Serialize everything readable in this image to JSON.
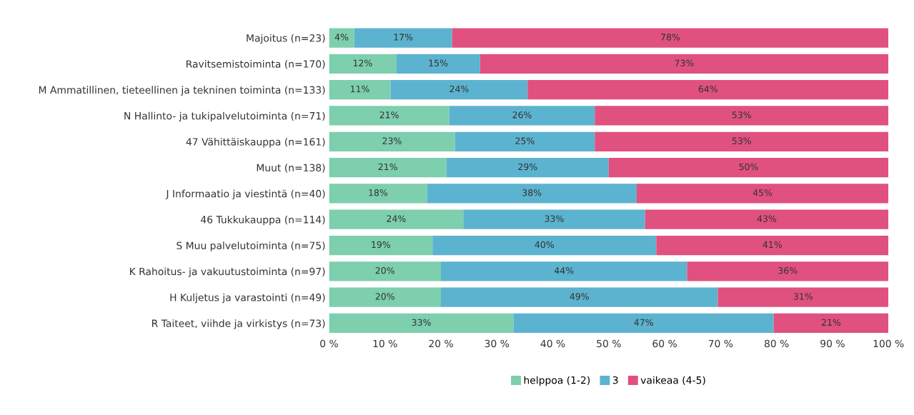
{
  "chart_data": {
    "type": "bar",
    "orientation": "horizontal",
    "stacked": true,
    "legend": "bottom",
    "grid": false,
    "categories": [
      "Majoitus (n=23)",
      "Ravitsemistoiminta (n=170)",
      "M Ammatillinen, tieteellinen ja tekninen toiminta (n=133)",
      "N Hallinto- ja tukipalvelutoiminta (n=71)",
      "47 Vähittäiskauppa (n=161)",
      "Muut (n=138)",
      "J Informaatio ja viestintä (n=40)",
      "46 Tukkukauppa (n=114)",
      "S Muu palvelutoiminta (n=75)",
      "K Rahoitus- ja vakuutustoiminta (n=97)",
      "H Kuljetus ja varastointi (n=49)",
      "R Taiteet, viihde ja virkistys (n=73)"
    ],
    "series": [
      {
        "name": "helppoa (1-2)",
        "color": "#7dcfae",
        "values": [
          4.5,
          12,
          11,
          21.5,
          22.5,
          21,
          17.5,
          24,
          18.5,
          20,
          20,
          33
        ],
        "value_labels": [
          "4%",
          "12%",
          "11%",
          "21%",
          "23%",
          "21%",
          "18%",
          "24%",
          "19%",
          "20%",
          "20%",
          "33%"
        ]
      },
      {
        "name": "3",
        "color": "#5cb3cf",
        "values": [
          17.5,
          15,
          24.5,
          26,
          25,
          29,
          37.5,
          32.5,
          40,
          44,
          49.5,
          46.5
        ],
        "value_labels": [
          "17%",
          "15%",
          "24%",
          "26%",
          "25%",
          "29%",
          "38%",
          "33%",
          "40%",
          "44%",
          "49%",
          "47%"
        ]
      },
      {
        "name": "vaikeaa (4-5)",
        "color": "#e0517f",
        "values": [
          78,
          73,
          64.5,
          52.5,
          52.5,
          50,
          45,
          43.5,
          41.5,
          36,
          30.5,
          20.5
        ],
        "value_labels": [
          "78%",
          "73%",
          "64%",
          "53%",
          "53%",
          "50%",
          "45%",
          "43%",
          "41%",
          "36%",
          "31%",
          "21%"
        ]
      }
    ],
    "xlim": [
      0,
      100
    ],
    "xticks": [
      {
        "value": 0,
        "label": "0 %"
      },
      {
        "value": 10,
        "label": "10 %"
      },
      {
        "value": 20,
        "label": "20 %"
      },
      {
        "value": 30,
        "label": "30 %"
      },
      {
        "value": 40,
        "label": "40 %"
      },
      {
        "value": 50,
        "label": "50 %"
      },
      {
        "value": 60,
        "label": "60 %"
      },
      {
        "value": 70,
        "label": "70 %"
      },
      {
        "value": 80,
        "label": "80 %"
      },
      {
        "value": 90,
        "label": "90 %"
      },
      {
        "value": 100,
        "label": "100 %"
      }
    ]
  }
}
